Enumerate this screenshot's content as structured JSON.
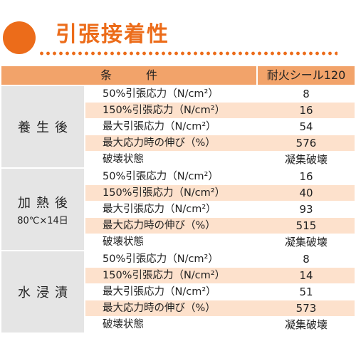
{
  "title": "引張接着性",
  "colors": {
    "accent": "#ec6c1a",
    "header": "#f2a36a",
    "row_shade": "#fde1cc",
    "group_bg": "#e5e5e5"
  },
  "table": {
    "header": {
      "condition": "条件",
      "product": "耐火シール120"
    },
    "groups": [
      {
        "name": "養生後",
        "sub": "",
        "rows": [
          {
            "label": "50%引張応力（N/cm²）",
            "value": "8"
          },
          {
            "label": "150%引張応力（N/cm²）",
            "value": "16"
          },
          {
            "label": "最大引張応力（N/cm²）",
            "value": "54"
          },
          {
            "label": "最大応力時の伸び（%）",
            "value": "576"
          },
          {
            "label": "破壊状態",
            "value": "凝集破壊"
          }
        ]
      },
      {
        "name": "加熱後",
        "sub": "80℃×14日",
        "rows": [
          {
            "label": "50%引張応力（N/cm²）",
            "value": "16"
          },
          {
            "label": "150%引張応力（N/cm²）",
            "value": "40"
          },
          {
            "label": "最大引張応力（N/cm²）",
            "value": "93"
          },
          {
            "label": "最大応力時の伸び（%）",
            "value": "515"
          },
          {
            "label": "破壊状態",
            "value": "凝集破壊"
          }
        ]
      },
      {
        "name": "水浸漬",
        "sub": "",
        "rows": [
          {
            "label": "50%引張応力（N/cm²）",
            "value": "8"
          },
          {
            "label": "150%引張応力（N/cm²）",
            "value": "14"
          },
          {
            "label": "最大引張応力（N/cm²）",
            "value": "51"
          },
          {
            "label": "最大応力時の伸び（%）",
            "value": "573"
          },
          {
            "label": "破壊状態",
            "value": "凝集破壊"
          }
        ]
      }
    ]
  }
}
